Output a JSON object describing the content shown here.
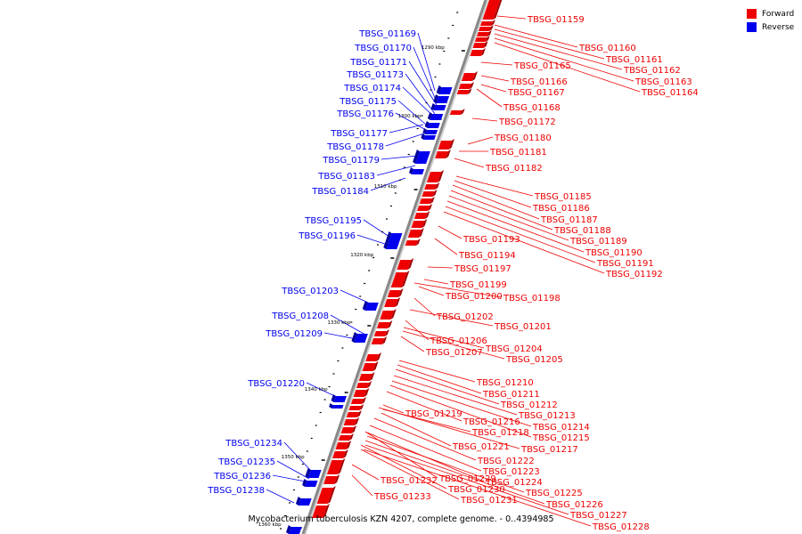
{
  "caption": "Mycobacterium tuberculosis KZN 4207, complete genome. - 0..4394985",
  "legend": [
    {
      "label": "Forward",
      "color": "#ee0000"
    },
    {
      "label": "Reverse",
      "color": "#0000ee"
    }
  ],
  "colors": {
    "forward": "#ee0000",
    "reverse": "#0000ee",
    "backbone": "#888888"
  },
  "ticks": [
    "1290 kbp",
    "1300 kbp",
    "1310 kbp",
    "1320 kbp",
    "1330 kbp",
    "1340 kbp",
    "1350 kbp",
    "1360 kbp"
  ],
  "forward_genes": [
    "TBSG_01159",
    "TBSG_01160",
    "TBSG_01161",
    "TBSG_01162",
    "TBSG_01163",
    "TBSG_01164",
    "TBSG_01165",
    "TBSG_01166",
    "TBSG_01167",
    "TBSG_01168",
    "TBSG_01172",
    "TBSG_01180",
    "TBSG_01181",
    "TBSG_01182",
    "TBSG_01185",
    "TBSG_01186",
    "TBSG_01187",
    "TBSG_01188",
    "TBSG_01189",
    "TBSG_01190",
    "TBSG_01191",
    "TBSG_01192",
    "TBSG_01193",
    "TBSG_01194",
    "TBSG_01197",
    "TBSG_01199",
    "TBSG_01200",
    "TBSG_01198",
    "TBSG_01202",
    "TBSG_01201",
    "TBSG_01206",
    "TBSG_01204",
    "TBSG_01207",
    "TBSG_01205",
    "TBSG_01210",
    "TBSG_01211",
    "TBSG_01212",
    "TBSG_01213",
    "TBSG_01219",
    "TBSG_01216",
    "TBSG_01214",
    "TBSG_01218",
    "TBSG_01215",
    "TBSG_01221",
    "TBSG_01217",
    "TBSG_01222",
    "TBSG_01223",
    "TBSG_01229",
    "TBSG_01232",
    "TBSG_01224",
    "TBSG_01230",
    "TBSG_01225",
    "TBSG_01233",
    "TBSG_01231",
    "TBSG_01226",
    "TBSG_01227",
    "TBSG_01228"
  ],
  "reverse_genes": [
    "TBSG_01169",
    "TBSG_01170",
    "TBSG_01171",
    "TBSG_01173",
    "TBSG_01174",
    "TBSG_01175",
    "TBSG_01176",
    "TBSG_01177",
    "TBSG_01178",
    "TBSG_01179",
    "TBSG_01183",
    "TBSG_01184",
    "TBSG_01195",
    "TBSG_01196",
    "TBSG_01203",
    "TBSG_01208",
    "TBSG_01209",
    "TBSG_01220",
    "TBSG_01234",
    "TBSG_01235",
    "TBSG_01236",
    "TBSG_01238"
  ]
}
